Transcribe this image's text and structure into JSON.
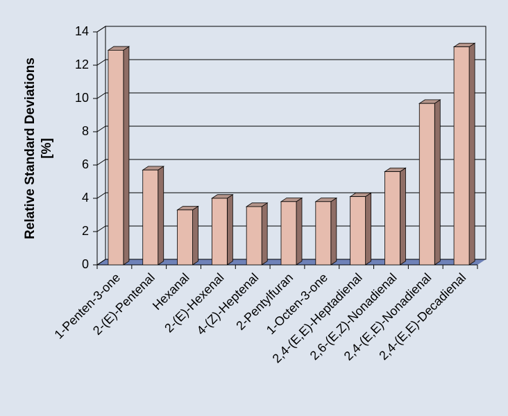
{
  "chart_data": {
    "type": "bar3d",
    "y_label": [
      "Relative Standard Deviations",
      "[%]"
    ],
    "categories": [
      "1-Penten-3-one",
      "2-(E)-Pentenal",
      "Hexanal",
      "2-(E)-Hexenal",
      "4-(Z)-Heptenal",
      "2-Pentylfuran",
      "1-Octen-3-one",
      "2,4-(E,E)-Heptadienal",
      "2,6-(E,Z)-Nonadienal",
      "2,4-(E,E)-Nonadienal",
      "2,4-(E,E)-Decadienal"
    ],
    "values": [
      12.9,
      5.7,
      3.3,
      4.0,
      3.5,
      3.8,
      3.8,
      4.1,
      5.6,
      9.7,
      13.1
    ],
    "color": "#e6bcae",
    "ylim": [
      0,
      14
    ],
    "yticks": [
      0,
      2,
      4,
      6,
      8,
      10,
      12,
      14
    ],
    "grid": true
  }
}
